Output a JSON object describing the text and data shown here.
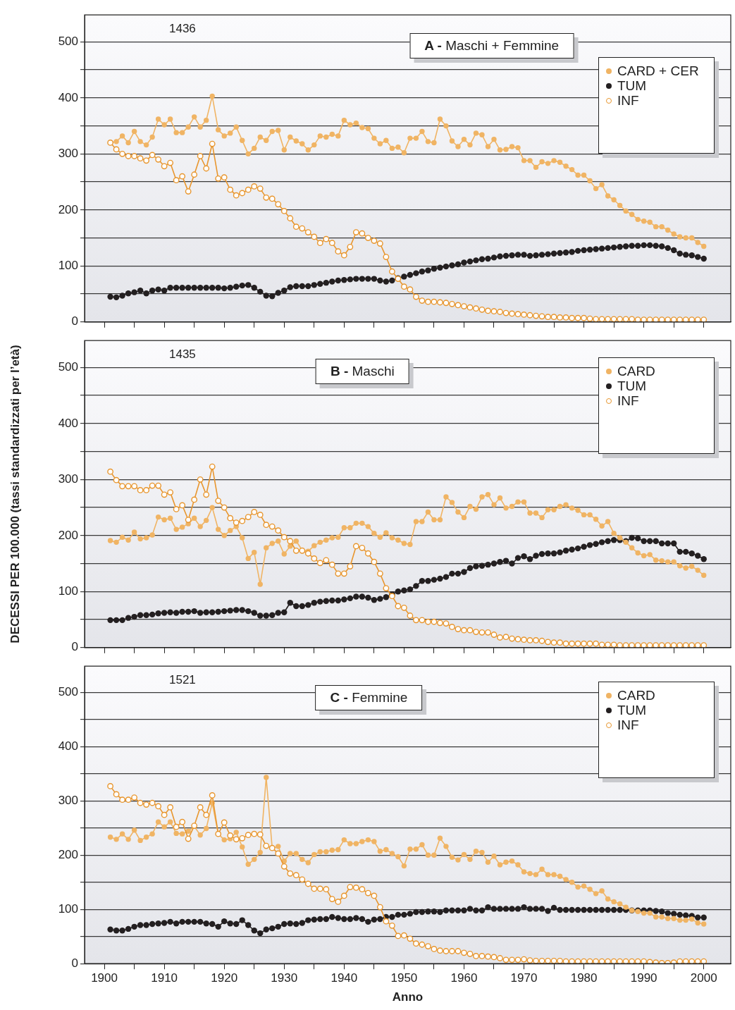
{
  "chart_data": [
    {
      "type": "line",
      "title": "A - Maschi + Femmine",
      "x": [
        1901,
        1902,
        1903,
        1904,
        1905,
        1906,
        1907,
        1908,
        1909,
        1910,
        1911,
        1912,
        1913,
        1914,
        1915,
        1916,
        1917,
        1918,
        1919,
        1920,
        1921,
        1922,
        1923,
        1924,
        1925,
        1926,
        1927,
        1928,
        1929,
        1930,
        1931,
        1932,
        1933,
        1934,
        1935,
        1936,
        1937,
        1938,
        1939,
        1940,
        1941,
        1942,
        1943,
        1944,
        1945,
        1946,
        1947,
        1948,
        1949,
        1950,
        1951,
        1952,
        1953,
        1954,
        1955,
        1956,
        1957,
        1958,
        1959,
        1960,
        1961,
        1962,
        1963,
        1964,
        1965,
        1966,
        1967,
        1968,
        1969,
        1970,
        1971,
        1972,
        1973,
        1974,
        1975,
        1976,
        1977,
        1978,
        1979,
        1980,
        1981,
        1982,
        1983,
        1984,
        1985,
        1986,
        1987,
        1988,
        1989,
        1990,
        1991,
        1992,
        1993,
        1994,
        1995,
        1996,
        1997,
        1998,
        1999,
        2000
      ],
      "series": [
        {
          "name": "CARD + CER",
          "color": "#f0b464",
          "values": [
            320,
            322,
            332,
            320,
            340,
            322,
            316,
            330,
            362,
            352,
            362,
            338,
            338,
            348,
            366,
            348,
            360,
            403,
            343,
            332,
            337,
            348,
            324,
            300,
            310,
            330,
            324,
            340,
            342,
            307,
            330,
            323,
            318,
            307,
            316,
            332,
            330,
            335,
            332,
            360,
            352,
            355,
            347,
            345,
            328,
            318,
            324,
            310,
            312,
            302,
            328,
            328,
            340,
            322,
            320,
            362,
            350,
            323,
            313,
            326,
            316,
            337,
            334,
            313,
            326,
            307,
            308,
            313,
            311,
            288,
            288,
            276,
            286,
            283,
            288,
            285,
            278,
            272,
            262,
            262,
            252,
            238,
            245,
            225,
            218,
            208,
            198,
            192,
            183,
            180,
            178,
            170,
            170,
            164,
            157,
            152,
            150,
            150,
            142,
            135
          ]
        },
        {
          "name": "TUM",
          "color": "#231f20",
          "values": [
            45,
            44,
            47,
            51,
            53,
            56,
            51,
            56,
            58,
            56,
            61,
            61,
            61,
            61,
            61,
            61,
            61,
            61,
            61,
            60,
            61,
            63,
            65,
            66,
            61,
            54,
            47,
            46,
            52,
            56,
            62,
            64,
            64,
            64,
            66,
            68,
            70,
            72,
            74,
            75,
            76,
            77,
            77,
            77,
            77,
            74,
            72,
            74,
            78,
            81,
            84,
            87,
            90,
            92,
            95,
            97,
            99,
            101,
            103,
            106,
            108,
            110,
            112,
            113,
            115,
            117,
            118,
            119,
            120,
            120,
            118,
            119,
            120,
            121,
            122,
            123,
            124,
            125,
            127,
            128,
            129,
            130,
            131,
            132,
            133,
            134,
            135,
            136,
            136,
            137,
            137,
            136,
            135,
            132,
            128,
            122,
            120,
            119,
            116,
            113
          ]
        },
        {
          "name": "INF",
          "color": "#e8962e",
          "values": [
            320,
            308,
            300,
            296,
            296,
            292,
            288,
            298,
            290,
            278,
            284,
            253,
            260,
            233,
            263,
            296,
            274,
            318,
            256,
            258,
            236,
            226,
            230,
            236,
            242,
            238,
            222,
            220,
            210,
            198,
            185,
            170,
            167,
            160,
            152,
            141,
            148,
            141,
            126,
            119,
            134,
            160,
            158,
            150,
            145,
            140,
            116,
            90,
            77,
            63,
            58,
            45,
            38,
            36,
            36,
            35,
            34,
            32,
            30,
            28,
            26,
            24,
            22,
            20,
            19,
            18,
            16,
            15,
            14,
            13,
            12,
            11,
            10,
            9,
            9,
            8,
            8,
            7,
            7,
            7,
            6,
            5,
            5,
            5,
            5,
            5,
            5,
            5,
            4,
            4,
            4,
            4,
            4,
            4,
            4,
            4,
            4,
            4,
            4,
            4
          ]
        }
      ],
      "xlim": [
        1896.7,
        2004.5
      ],
      "xticks": [
        1900,
        {
          "value": 1905,
          "label": null
        },
        1910,
        {
          "value": 1915,
          "label": null
        },
        1920,
        {
          "value": 1925,
          "label": null
        },
        1930,
        {
          "value": 1935,
          "label": null
        },
        1940,
        {
          "value": 1945,
          "label": null
        },
        1950,
        {
          "value": 1955,
          "label": null
        },
        1960,
        {
          "value": 1965,
          "label": null
        },
        1970,
        {
          "value": 1975,
          "label": null
        },
        1980,
        {
          "value": 1985,
          "label": null
        },
        1990,
        {
          "value": 1995,
          "label": null
        },
        2000
      ],
      "ylim": [
        0,
        548
      ],
      "yticks": [
        0,
        {
          "value": 50,
          "label": null
        },
        100,
        {
          "value": 150,
          "label": null
        },
        200,
        {
          "value": 250,
          "label": null
        },
        300,
        {
          "value": 350,
          "label": null
        },
        400,
        {
          "value": 450,
          "label": null
        },
        500
      ],
      "grid": "y",
      "legend": "top right",
      "marker": "circle",
      "tick_labels": "y",
      "annotations": [
        "1436"
      ]
    },
    {
      "type": "line",
      "title": "B - Maschi",
      "ylabel": "DECESSI PER 100.000 (tassi standardizzati per l’età)",
      "x": [
        1901,
        1902,
        1903,
        1904,
        1905,
        1906,
        1907,
        1908,
        1909,
        1910,
        1911,
        1912,
        1913,
        1914,
        1915,
        1916,
        1917,
        1918,
        1919,
        1920,
        1921,
        1922,
        1923,
        1924,
        1925,
        1926,
        1927,
        1928,
        1929,
        1930,
        1931,
        1932,
        1933,
        1934,
        1935,
        1936,
        1937,
        1938,
        1939,
        1940,
        1941,
        1942,
        1943,
        1944,
        1945,
        1946,
        1947,
        1948,
        1949,
        1950,
        1951,
        1952,
        1953,
        1954,
        1955,
        1956,
        1957,
        1958,
        1959,
        1960,
        1961,
        1962,
        1963,
        1964,
        1965,
        1966,
        1967,
        1968,
        1969,
        1970,
        1971,
        1972,
        1973,
        1974,
        1975,
        1976,
        1977,
        1978,
        1979,
        1980,
        1981,
        1982,
        1983,
        1984,
        1985,
        1986,
        1987,
        1988,
        1989,
        1990,
        1991,
        1992,
        1993,
        1994,
        1995,
        1996,
        1997,
        1998,
        1999,
        2000
      ],
      "series": [
        {
          "name": "CARD",
          "color": "#f0b464",
          "values": [
            191,
            188,
            197,
            192,
            206,
            194,
            196,
            201,
            233,
            228,
            231,
            211,
            215,
            221,
            231,
            216,
            227,
            250,
            211,
            200,
            209,
            216,
            196,
            159,
            170,
            113,
            178,
            186,
            190,
            167,
            181,
            190,
            174,
            172,
            182,
            188,
            192,
            196,
            197,
            214,
            214,
            222,
            222,
            216,
            204,
            197,
            205,
            196,
            192,
            186,
            184,
            225,
            225,
            242,
            228,
            228,
            269,
            259,
            242,
            232,
            252,
            247,
            269,
            273,
            255,
            267,
            249,
            252,
            260,
            260,
            240,
            240,
            232,
            246,
            246,
            252,
            255,
            249,
            245,
            237,
            237,
            229,
            217,
            225,
            204,
            196,
            188,
            178,
            169,
            164,
            166,
            156,
            155,
            153,
            153,
            146,
            142,
            145,
            138,
            129
          ]
        },
        {
          "name": "TUM",
          "color": "#231f20",
          "values": [
            49,
            49,
            49,
            53,
            55,
            58,
            58,
            59,
            61,
            62,
            63,
            62,
            64,
            64,
            65,
            62,
            63,
            63,
            64,
            65,
            66,
            67,
            67,
            65,
            62,
            57,
            57,
            58,
            62,
            63,
            80,
            74,
            74,
            76,
            80,
            82,
            83,
            84,
            84,
            86,
            88,
            91,
            91,
            89,
            85,
            87,
            90,
            95,
            100,
            102,
            104,
            110,
            119,
            119,
            121,
            123,
            126,
            132,
            132,
            135,
            142,
            145,
            146,
            148,
            150,
            153,
            155,
            150,
            160,
            163,
            158,
            164,
            167,
            168,
            168,
            170,
            173,
            175,
            177,
            180,
            183,
            185,
            188,
            190,
            192,
            192,
            190,
            196,
            195,
            190,
            190,
            190,
            186,
            186,
            186,
            171,
            171,
            168,
            164,
            158
          ]
        },
        {
          "name": "INF",
          "color": "#e8962e",
          "values": [
            314,
            299,
            288,
            288,
            288,
            281,
            281,
            289,
            289,
            273,
            277,
            247,
            254,
            228,
            264,
            300,
            273,
            323,
            262,
            250,
            231,
            223,
            226,
            233,
            242,
            237,
            219,
            216,
            209,
            197,
            190,
            173,
            173,
            168,
            159,
            151,
            156,
            148,
            132,
            132,
            145,
            181,
            178,
            168,
            153,
            132,
            106,
            92,
            74,
            71,
            57,
            49,
            49,
            46,
            46,
            44,
            43,
            37,
            33,
            31,
            31,
            28,
            27,
            27,
            23,
            18,
            19,
            16,
            15,
            14,
            13,
            13,
            12,
            10,
            9,
            9,
            7,
            7,
            7,
            7,
            7,
            7,
            5,
            5,
            5,
            4,
            4,
            4,
            4,
            4,
            4,
            4,
            4,
            4,
            4,
            4,
            4,
            4,
            4,
            4
          ]
        }
      ],
      "xlim": [
        1896.7,
        2004.5
      ],
      "xticks": [
        1900,
        {
          "value": 1905,
          "label": null
        },
        1910,
        {
          "value": 1915,
          "label": null
        },
        1920,
        {
          "value": 1925,
          "label": null
        },
        1930,
        {
          "value": 1935,
          "label": null
        },
        1940,
        {
          "value": 1945,
          "label": null
        },
        1950,
        {
          "value": 1955,
          "label": null
        },
        1960,
        {
          "value": 1965,
          "label": null
        },
        1970,
        {
          "value": 1975,
          "label": null
        },
        1980,
        {
          "value": 1985,
          "label": null
        },
        1990,
        {
          "value": 1995,
          "label": null
        },
        2000
      ],
      "ylim": [
        0,
        548
      ],
      "yticks": [
        0,
        {
          "value": 50,
          "label": null
        },
        100,
        {
          "value": 150,
          "label": null
        },
        200,
        {
          "value": 250,
          "label": null
        },
        300,
        {
          "value": 350,
          "label": null
        },
        400,
        {
          "value": 450,
          "label": null
        },
        500
      ],
      "grid": "y",
      "legend": "top right",
      "marker": "circle",
      "tick_labels": "y",
      "annotations": [
        "1435"
      ]
    },
    {
      "type": "line",
      "title": "C - Femmine",
      "xlabel": "Anno",
      "x": [
        1901,
        1902,
        1903,
        1904,
        1905,
        1906,
        1907,
        1908,
        1909,
        1910,
        1911,
        1912,
        1913,
        1914,
        1915,
        1916,
        1917,
        1918,
        1919,
        1920,
        1921,
        1922,
        1923,
        1924,
        1925,
        1926,
        1927,
        1928,
        1929,
        1930,
        1931,
        1932,
        1933,
        1934,
        1935,
        1936,
        1937,
        1938,
        1939,
        1940,
        1941,
        1942,
        1943,
        1944,
        1945,
        1946,
        1947,
        1948,
        1949,
        1950,
        1951,
        1952,
        1953,
        1954,
        1955,
        1956,
        1957,
        1958,
        1959,
        1960,
        1961,
        1962,
        1963,
        1964,
        1965,
        1966,
        1967,
        1968,
        1969,
        1970,
        1971,
        1972,
        1973,
        1974,
        1975,
        1976,
        1977,
        1978,
        1979,
        1980,
        1981,
        1982,
        1983,
        1984,
        1985,
        1986,
        1987,
        1988,
        1989,
        1990,
        1991,
        1992,
        1993,
        1994,
        1995,
        1996,
        1997,
        1998,
        1999,
        2000
      ],
      "series": [
        {
          "name": "CARD",
          "color": "#f0b464",
          "values": [
            233,
            229,
            239,
            229,
            246,
            227,
            233,
            239,
            261,
            252,
            261,
            240,
            239,
            244,
            253,
            237,
            249,
            296,
            239,
            228,
            230,
            242,
            215,
            183,
            192,
            205,
            343,
            213,
            216,
            189,
            203,
            203,
            192,
            186,
            201,
            206,
            206,
            209,
            210,
            228,
            221,
            221,
            225,
            228,
            225,
            207,
            210,
            203,
            197,
            180,
            211,
            211,
            219,
            200,
            200,
            231,
            216,
            196,
            191,
            201,
            192,
            207,
            205,
            187,
            198,
            182,
            187,
            189,
            182,
            169,
            166,
            164,
            174,
            164,
            164,
            161,
            155,
            150,
            141,
            143,
            137,
            129,
            134,
            119,
            114,
            110,
            104,
            98,
            96,
            93,
            93,
            86,
            86,
            83,
            83,
            80,
            80,
            82,
            75,
            73
          ]
        },
        {
          "name": "TUM",
          "color": "#231f20",
          "values": [
            63,
            61,
            61,
            64,
            68,
            71,
            71,
            73,
            74,
            75,
            77,
            74,
            77,
            77,
            77,
            77,
            74,
            73,
            68,
            78,
            74,
            73,
            80,
            71,
            61,
            56,
            63,
            65,
            68,
            73,
            74,
            73,
            75,
            80,
            81,
            82,
            82,
            86,
            84,
            82,
            82,
            84,
            82,
            77,
            81,
            82,
            86,
            86,
            90,
            90,
            92,
            95,
            95,
            96,
            96,
            95,
            98,
            98,
            98,
            98,
            101,
            98,
            98,
            104,
            101,
            101,
            101,
            101,
            101,
            104,
            101,
            101,
            101,
            97,
            103,
            99,
            99,
            99,
            99,
            99,
            99,
            99,
            99,
            99,
            99,
            99,
            99,
            98,
            98,
            98,
            98,
            97,
            96,
            93,
            92,
            90,
            89,
            88,
            85,
            85
          ]
        },
        {
          "name": "INF",
          "color": "#e8962e",
          "values": [
            327,
            312,
            302,
            302,
            306,
            296,
            293,
            296,
            290,
            274,
            288,
            252,
            261,
            230,
            254,
            288,
            274,
            310,
            239,
            260,
            236,
            229,
            231,
            237,
            239,
            238,
            217,
            213,
            203,
            179,
            166,
            163,
            155,
            147,
            138,
            138,
            137,
            119,
            114,
            125,
            141,
            140,
            137,
            130,
            125,
            104,
            78,
            70,
            51,
            52,
            46,
            37,
            35,
            32,
            27,
            24,
            23,
            23,
            23,
            20,
            18,
            14,
            14,
            13,
            12,
            10,
            7,
            7,
            7,
            8,
            6,
            5,
            5,
            5,
            5,
            5,
            4,
            4,
            4,
            4,
            4,
            4,
            4,
            4,
            4,
            4,
            4,
            4,
            4,
            4,
            3,
            2,
            1,
            1,
            2,
            4,
            4,
            4,
            4,
            4
          ]
        }
      ],
      "xlim": [
        1896.7,
        2004.5
      ],
      "xticks": [
        1900,
        {
          "value": 1905,
          "label": null
        },
        1910,
        {
          "value": 1915,
          "label": null
        },
        1920,
        {
          "value": 1925,
          "label": null
        },
        1930,
        {
          "value": 1935,
          "label": null
        },
        1940,
        {
          "value": 1945,
          "label": null
        },
        1950,
        {
          "value": 1955,
          "label": null
        },
        1960,
        {
          "value": 1965,
          "label": null
        },
        1970,
        {
          "value": 1975,
          "label": null
        },
        1980,
        {
          "value": 1985,
          "label": null
        },
        1990,
        {
          "value": 1995,
          "label": null
        },
        2000
      ],
      "ylim": [
        0,
        548
      ],
      "yticks": [
        0,
        {
          "value": 50,
          "label": null
        },
        100,
        {
          "value": 150,
          "label": null
        },
        200,
        {
          "value": 250,
          "label": null
        },
        300,
        {
          "value": 350,
          "label": null
        },
        400,
        {
          "value": 450,
          "label": null
        },
        500
      ],
      "grid": "y",
      "legend": "top right",
      "marker": "circle",
      "annotations": [
        "1521"
      ]
    }
  ]
}
